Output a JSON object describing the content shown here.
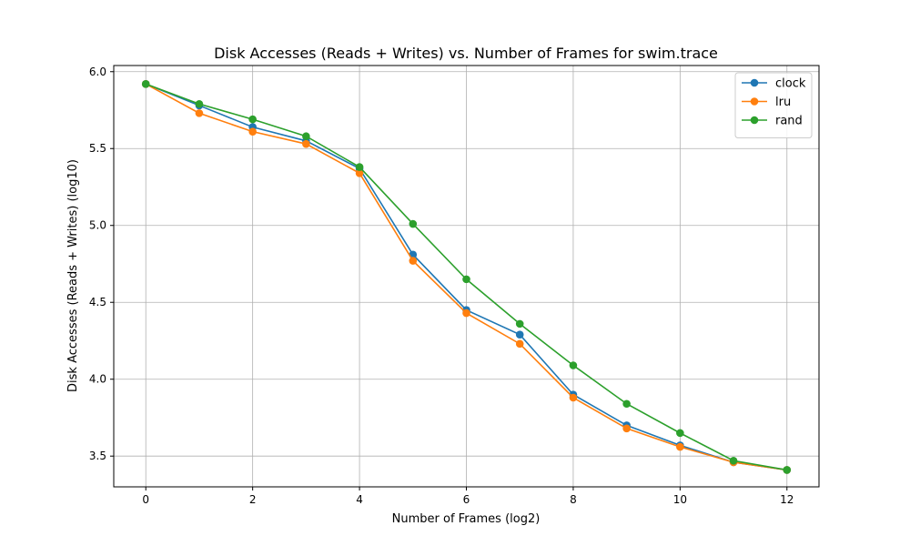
{
  "chart_data": {
    "type": "line",
    "title": "Disk Accesses (Reads + Writes) vs. Number of Frames for swim.trace",
    "xlabel": "Number of Frames (log2)",
    "ylabel": "Disk Accesses (Reads + Writes) (log10)",
    "xlim": [
      -0.6,
      12.6
    ],
    "ylim": [
      3.3,
      6.04
    ],
    "xticks": [
      0,
      2,
      4,
      6,
      8,
      10,
      12
    ],
    "yticks": [
      3.5,
      4.0,
      4.5,
      5.0,
      5.5,
      6.0
    ],
    "ytick_labels": [
      "3.5",
      "4.0",
      "4.5",
      "5.0",
      "5.5",
      "6.0"
    ],
    "grid": true,
    "legend_position": "top-right",
    "x": [
      0,
      1,
      2,
      3,
      4,
      5,
      6,
      7,
      8,
      9,
      10,
      11,
      12
    ],
    "series": [
      {
        "name": "clock",
        "color": "#1f77b4",
        "values": [
          5.92,
          5.78,
          5.64,
          5.55,
          5.37,
          4.81,
          4.45,
          4.29,
          3.9,
          3.7,
          3.57,
          3.46,
          3.41
        ]
      },
      {
        "name": "lru",
        "color": "#ff7f0e",
        "values": [
          5.92,
          5.73,
          5.61,
          5.53,
          5.34,
          4.77,
          4.43,
          4.23,
          3.88,
          3.68,
          3.56,
          3.46,
          3.41
        ]
      },
      {
        "name": "rand",
        "color": "#2ca02c",
        "values": [
          5.92,
          5.79,
          5.69,
          5.58,
          5.38,
          5.01,
          4.65,
          4.36,
          4.09,
          3.84,
          3.65,
          3.47,
          3.41
        ]
      }
    ]
  }
}
